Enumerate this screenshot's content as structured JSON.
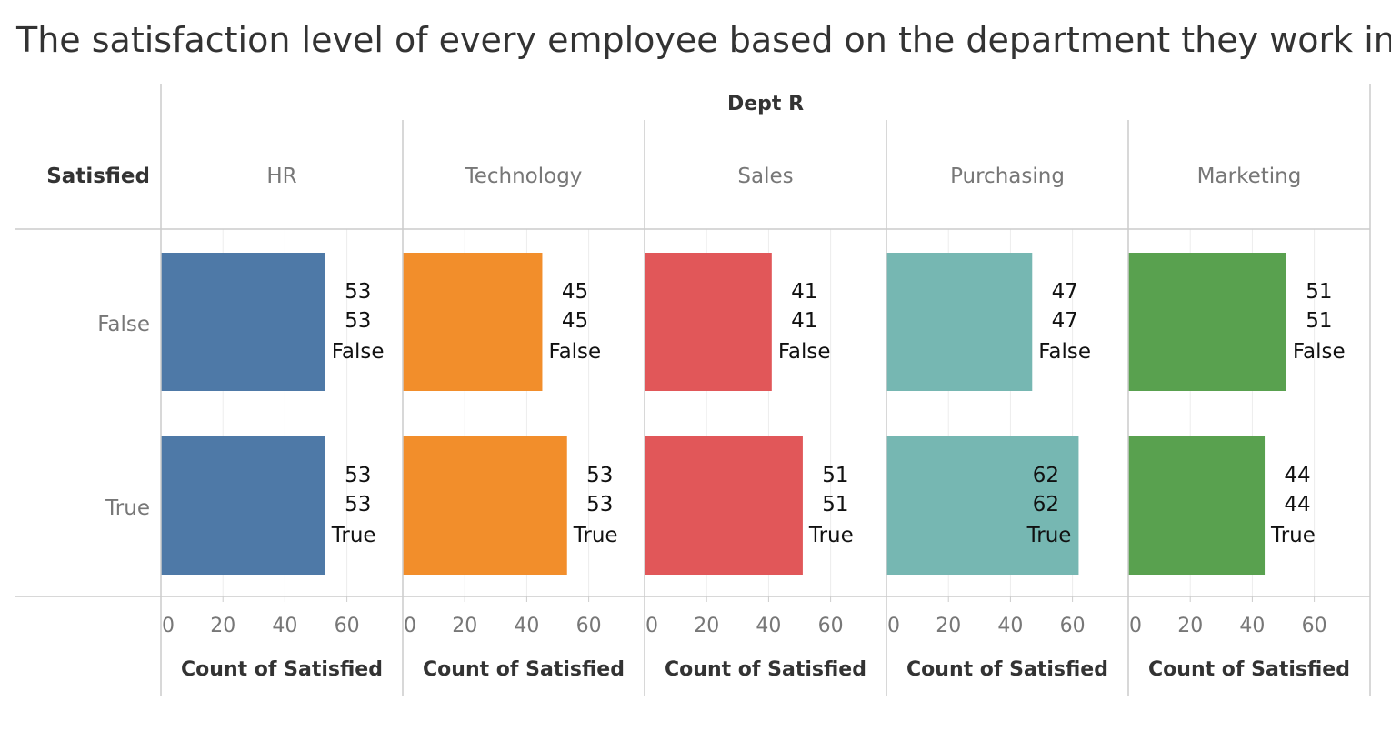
{
  "chart_data": {
    "type": "bar",
    "title": "The satisfaction level of every employee based on the department they work in",
    "column_group_label": "Dept R",
    "row_header_label": "Satisfied",
    "rows": [
      "False",
      "True"
    ],
    "departments": [
      "HR",
      "Technology",
      "Sales",
      "Purchasing",
      "Marketing"
    ],
    "series": [
      {
        "name": "HR",
        "color": "#4e79a7",
        "values": [
          53,
          53
        ]
      },
      {
        "name": "Technology",
        "color": "#f28e2b",
        "values": [
          45,
          53
        ]
      },
      {
        "name": "Sales",
        "color": "#e15759",
        "values": [
          41,
          51
        ]
      },
      {
        "name": "Purchasing",
        "color": "#76b7b2",
        "values": [
          47,
          62
        ]
      },
      {
        "name": "Marketing",
        "color": "#59a14f",
        "values": [
          51,
          44
        ]
      }
    ],
    "xlabel": "Count of Satisfied",
    "xticks": [
      0,
      20,
      40,
      60
    ],
    "xlim": [
      0,
      78
    ],
    "orientation": "horizontal",
    "grid": true
  }
}
